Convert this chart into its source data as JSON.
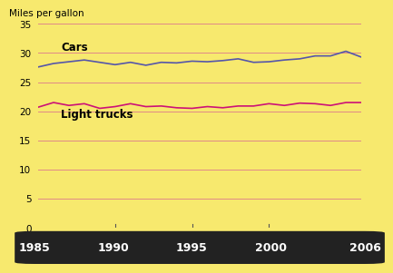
{
  "years": [
    1985,
    1986,
    1987,
    1988,
    1989,
    1990,
    1991,
    1992,
    1993,
    1994,
    1995,
    1996,
    1997,
    1998,
    1999,
    2000,
    2001,
    2002,
    2003,
    2004,
    2005,
    2006
  ],
  "cars": [
    27.6,
    28.2,
    28.5,
    28.8,
    28.4,
    28.0,
    28.4,
    27.9,
    28.4,
    28.3,
    28.6,
    28.5,
    28.7,
    29.0,
    28.4,
    28.5,
    28.8,
    29.0,
    29.5,
    29.5,
    30.3,
    29.3
  ],
  "light_trucks": [
    20.7,
    21.5,
    21.0,
    21.3,
    20.5,
    20.8,
    21.3,
    20.8,
    20.9,
    20.6,
    20.5,
    20.8,
    20.6,
    20.9,
    20.9,
    21.3,
    21.0,
    21.4,
    21.3,
    21.0,
    21.5,
    21.5
  ],
  "cars_color": "#5555aa",
  "trucks_color": "#cc1177",
  "background_color": "#f7e96e",
  "bar_color": "#222222",
  "grid_color": "#e08888",
  "ylabel": "Miles per gallon",
  "cars_label": "Cars",
  "trucks_label": "Light trucks",
  "ylim": [
    0,
    35
  ],
  "yticks": [
    0,
    5,
    10,
    15,
    20,
    25,
    30,
    35
  ],
  "xlim": [
    1985,
    2006
  ],
  "xtick_labels": [
    "1985",
    "1990",
    "1995",
    "2000",
    "2006"
  ],
  "xtick_positions": [
    1985,
    1990,
    1995,
    2000,
    2006
  ],
  "inner_tick_years": [
    1990,
    1995,
    2000
  ]
}
